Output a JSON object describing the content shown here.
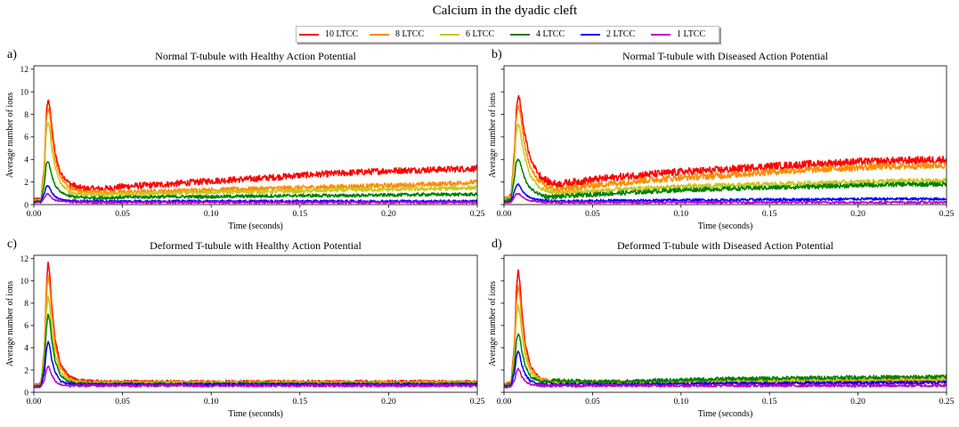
{
  "suptitle": "Calcium in the dyadic cleft",
  "legend": [
    {
      "label": "10 LTCC",
      "color": "#ff0000"
    },
    {
      "label": "8 LTCC",
      "color": "#ff8c00"
    },
    {
      "label": "6 LTCC",
      "color": "#c8c81e"
    },
    {
      "label": "4 LTCC",
      "color": "#008000"
    },
    {
      "label": "2 LTCC",
      "color": "#0000ff"
    },
    {
      "label": "1 LTCC",
      "color": "#c000c0"
    }
  ],
  "x_ticks": [
    "0.00",
    "0.05",
    "0.10",
    "0.15",
    "0.20",
    "0.25"
  ],
  "y_ticks": [
    "0",
    "2",
    "4",
    "6",
    "8",
    "10",
    "12"
  ],
  "chart_data": [
    {
      "type": "line",
      "panel_label": "a)",
      "title": "Normal T-tubule with Healthy Action Potential",
      "xlabel": "Time (seconds)",
      "ylabel": "Average number of ions",
      "xlim": [
        0,
        0.25
      ],
      "ylim": [
        0,
        12.3
      ],
      "show_y_ticklabels": true,
      "x": [
        0,
        0.004,
        0.006,
        0.007,
        0.008,
        0.009,
        0.01,
        0.012,
        0.015,
        0.02,
        0.025,
        0.03,
        0.04,
        0.05,
        0.075,
        0.1,
        0.125,
        0.15,
        0.175,
        0.2,
        0.225,
        0.25
      ],
      "series": [
        {
          "name": "10 LTCC",
          "values": [
            0.4,
            0.5,
            3.5,
            8.0,
            9.3,
            8.8,
            7.0,
            4.5,
            2.8,
            1.9,
            1.5,
            1.4,
            1.4,
            1.6,
            1.8,
            2.1,
            2.3,
            2.6,
            2.8,
            3.0,
            3.1,
            3.2
          ]
        },
        {
          "name": "8 LTCC",
          "values": [
            0.35,
            0.45,
            3.2,
            7.4,
            8.6,
            8.0,
            6.2,
            4.0,
            2.4,
            1.5,
            1.2,
            1.1,
            1.1,
            1.1,
            1.2,
            1.3,
            1.4,
            1.5,
            1.6,
            1.7,
            1.8,
            2.0
          ]
        },
        {
          "name": "6 LTCC",
          "values": [
            0.3,
            0.4,
            2.8,
            6.5,
            7.3,
            6.8,
            5.0,
            3.3,
            1.9,
            1.1,
            0.95,
            0.9,
            0.9,
            0.95,
            1.0,
            1.1,
            1.15,
            1.2,
            1.3,
            1.35,
            1.4,
            1.5
          ]
        },
        {
          "name": "4 LTCC",
          "values": [
            0.25,
            0.3,
            1.8,
            3.6,
            3.9,
            3.4,
            2.6,
            1.7,
            1.1,
            0.75,
            0.65,
            0.6,
            0.6,
            0.65,
            0.7,
            0.7,
            0.75,
            0.8,
            0.8,
            0.85,
            0.9,
            0.9
          ]
        },
        {
          "name": "2 LTCC",
          "values": [
            0.2,
            0.25,
            1.0,
            1.6,
            1.7,
            1.5,
            1.1,
            0.7,
            0.45,
            0.35,
            0.3,
            0.3,
            0.3,
            0.3,
            0.3,
            0.3,
            0.3,
            0.3,
            0.3,
            0.3,
            0.3,
            0.3
          ]
        },
        {
          "name": "1 LTCC",
          "values": [
            0.15,
            0.2,
            0.6,
            0.9,
            0.95,
            0.8,
            0.6,
            0.4,
            0.3,
            0.25,
            0.22,
            0.2,
            0.2,
            0.2,
            0.2,
            0.2,
            0.2,
            0.2,
            0.2,
            0.2,
            0.2,
            0.2
          ]
        }
      ]
    },
    {
      "type": "line",
      "panel_label": "b)",
      "title": "Normal T-tubule with Diseased Action Potential",
      "xlabel": "Time (seconds)",
      "ylabel": "Average number of ions",
      "xlim": [
        0,
        0.25
      ],
      "ylim": [
        0,
        12.3
      ],
      "show_y_ticklabels": false,
      "x": [
        0,
        0.004,
        0.006,
        0.007,
        0.008,
        0.009,
        0.01,
        0.012,
        0.015,
        0.02,
        0.025,
        0.03,
        0.04,
        0.05,
        0.075,
        0.1,
        0.125,
        0.15,
        0.175,
        0.2,
        0.225,
        0.25
      ],
      "series": [
        {
          "name": "10 LTCC",
          "values": [
            0.5,
            0.8,
            5.0,
            8.5,
            9.6,
            9.2,
            8.0,
            6.0,
            4.0,
            2.6,
            2.0,
            1.8,
            2.0,
            2.2,
            2.6,
            2.9,
            3.1,
            3.4,
            3.6,
            3.8,
            3.9,
            4.0
          ]
        },
        {
          "name": "8 LTCC",
          "values": [
            0.45,
            0.7,
            4.5,
            7.8,
            8.8,
            8.3,
            7.0,
            5.0,
            3.2,
            2.0,
            1.5,
            1.3,
            1.5,
            1.7,
            2.1,
            2.4,
            2.6,
            2.9,
            3.1,
            3.3,
            3.4,
            3.5
          ]
        },
        {
          "name": "6 LTCC",
          "values": [
            0.4,
            0.6,
            3.8,
            6.5,
            7.2,
            6.8,
            5.6,
            4.0,
            2.5,
            1.5,
            1.2,
            1.0,
            1.1,
            1.2,
            1.4,
            1.6,
            1.7,
            1.8,
            1.9,
            2.0,
            2.1,
            2.1
          ]
        },
        {
          "name": "4 LTCC",
          "values": [
            0.3,
            0.5,
            2.5,
            3.8,
            4.0,
            3.8,
            3.2,
            2.2,
            1.4,
            0.9,
            0.7,
            0.7,
            0.8,
            0.9,
            1.1,
            1.3,
            1.4,
            1.5,
            1.6,
            1.7,
            1.8,
            1.8
          ]
        },
        {
          "name": "2 LTCC",
          "values": [
            0.2,
            0.3,
            1.2,
            1.7,
            1.8,
            1.6,
            1.3,
            0.9,
            0.6,
            0.4,
            0.35,
            0.3,
            0.3,
            0.35,
            0.35,
            0.4,
            0.4,
            0.45,
            0.45,
            0.5,
            0.5,
            0.5
          ]
        },
        {
          "name": "1 LTCC",
          "values": [
            0.15,
            0.2,
            0.7,
            0.95,
            1.0,
            0.9,
            0.7,
            0.5,
            0.35,
            0.25,
            0.22,
            0.2,
            0.2,
            0.2,
            0.2,
            0.2,
            0.2,
            0.2,
            0.2,
            0.2,
            0.2,
            0.2
          ]
        }
      ]
    },
    {
      "type": "line",
      "panel_label": "c)",
      "title": "Deformed T-tubule with Healthy Action Potential",
      "xlabel": "Time (seconds)",
      "ylabel": "Average number of ions",
      "xlim": [
        0,
        0.25
      ],
      "ylim": [
        0,
        12.3
      ],
      "show_y_ticklabels": true,
      "x": [
        0,
        0.004,
        0.006,
        0.007,
        0.008,
        0.009,
        0.01,
        0.012,
        0.015,
        0.02,
        0.025,
        0.03,
        0.04,
        0.05,
        0.075,
        0.1,
        0.125,
        0.15,
        0.175,
        0.2,
        0.225,
        0.25
      ],
      "series": [
        {
          "name": "10 LTCC",
          "values": [
            0.6,
            0.8,
            4.0,
            9.0,
            11.8,
            10.5,
            8.0,
            4.8,
            2.5,
            1.4,
            1.1,
            1.0,
            0.95,
            0.95,
            0.95,
            0.95,
            0.95,
            0.95,
            0.95,
            0.95,
            0.95,
            0.95
          ]
        },
        {
          "name": "8 LTCC",
          "values": [
            0.6,
            0.75,
            3.8,
            8.5,
            10.6,
            9.5,
            7.2,
            4.2,
            2.2,
            1.2,
            1.0,
            0.9,
            0.9,
            0.9,
            0.9,
            0.9,
            0.9,
            0.9,
            0.9,
            0.9,
            0.9,
            0.9
          ]
        },
        {
          "name": "6 LTCC",
          "values": [
            0.55,
            0.7,
            3.2,
            7.0,
            8.7,
            7.8,
            5.8,
            3.4,
            1.8,
            1.0,
            0.85,
            0.8,
            0.8,
            0.8,
            0.8,
            0.8,
            0.8,
            0.8,
            0.8,
            0.8,
            0.8,
            0.8
          ]
        },
        {
          "name": "4 LTCC",
          "values": [
            0.5,
            0.65,
            2.6,
            5.6,
            7.1,
            6.4,
            4.8,
            2.8,
            1.5,
            0.9,
            0.8,
            0.75,
            0.75,
            0.75,
            0.75,
            0.75,
            0.75,
            0.75,
            0.75,
            0.75,
            0.75,
            0.75
          ]
        },
        {
          "name": "2 LTCC",
          "values": [
            0.45,
            0.55,
            1.8,
            3.7,
            4.6,
            4.1,
            3.0,
            1.8,
            1.0,
            0.75,
            0.7,
            0.7,
            0.7,
            0.7,
            0.7,
            0.7,
            0.7,
            0.7,
            0.7,
            0.7,
            0.7,
            0.7
          ]
        },
        {
          "name": "1 LTCC",
          "values": [
            0.45,
            0.5,
            1.1,
            2.0,
            2.4,
            2.1,
            1.6,
            1.0,
            0.7,
            0.6,
            0.6,
            0.6,
            0.6,
            0.6,
            0.6,
            0.6,
            0.6,
            0.6,
            0.6,
            0.6,
            0.6,
            0.6
          ]
        }
      ]
    },
    {
      "type": "line",
      "panel_label": "d)",
      "title": "Deformed T-tubule with Diseased Action Potential",
      "xlabel": "Time (seconds)",
      "ylabel": "Average number of ions",
      "xlim": [
        0,
        0.25
      ],
      "ylim": [
        0,
        12.3
      ],
      "show_y_ticklabels": false,
      "x": [
        0,
        0.004,
        0.006,
        0.007,
        0.008,
        0.009,
        0.01,
        0.012,
        0.015,
        0.02,
        0.025,
        0.03,
        0.04,
        0.05,
        0.075,
        0.1,
        0.125,
        0.15,
        0.175,
        0.2,
        0.225,
        0.25
      ],
      "series": [
        {
          "name": "10 LTCC",
          "values": [
            0.7,
            0.9,
            4.5,
            9.2,
            11.0,
            9.8,
            7.5,
            4.4,
            2.3,
            1.3,
            1.0,
            0.95,
            0.9,
            0.9,
            0.9,
            0.95,
            1.0,
            1.0,
            1.0,
            1.05,
            1.05,
            1.1
          ]
        },
        {
          "name": "8 LTCC",
          "values": [
            0.65,
            0.85,
            4.0,
            8.0,
            9.6,
            8.6,
            6.6,
            3.9,
            2.1,
            1.2,
            1.0,
            0.95,
            0.9,
            0.9,
            0.9,
            0.95,
            1.0,
            1.05,
            1.1,
            1.1,
            1.15,
            1.2
          ]
        },
        {
          "name": "6 LTCC",
          "values": [
            0.6,
            0.8,
            3.4,
            6.6,
            7.8,
            7.0,
            5.4,
            3.2,
            1.8,
            1.1,
            0.95,
            0.9,
            0.9,
            0.9,
            0.9,
            0.95,
            1.0,
            1.05,
            1.1,
            1.15,
            1.2,
            1.2
          ]
        },
        {
          "name": "4 LTCC",
          "values": [
            0.55,
            0.75,
            2.6,
            4.6,
            5.3,
            4.9,
            3.8,
            2.4,
            1.4,
            1.0,
            1.0,
            1.05,
            1.0,
            0.95,
            1.0,
            1.1,
            1.2,
            1.25,
            1.3,
            1.35,
            1.35,
            1.4
          ]
        },
        {
          "name": "2 LTCC",
          "values": [
            0.5,
            0.6,
            1.8,
            3.2,
            3.7,
            3.3,
            2.5,
            1.6,
            1.0,
            0.75,
            0.7,
            0.7,
            0.7,
            0.7,
            0.7,
            0.75,
            0.8,
            0.8,
            0.85,
            0.85,
            0.85,
            0.9
          ]
        },
        {
          "name": "1 LTCC",
          "values": [
            0.45,
            0.5,
            1.1,
            1.8,
            2.1,
            1.9,
            1.4,
            1.0,
            0.7,
            0.6,
            0.6,
            0.6,
            0.6,
            0.6,
            0.6,
            0.6,
            0.6,
            0.6,
            0.6,
            0.6,
            0.6,
            0.6
          ]
        }
      ]
    }
  ]
}
